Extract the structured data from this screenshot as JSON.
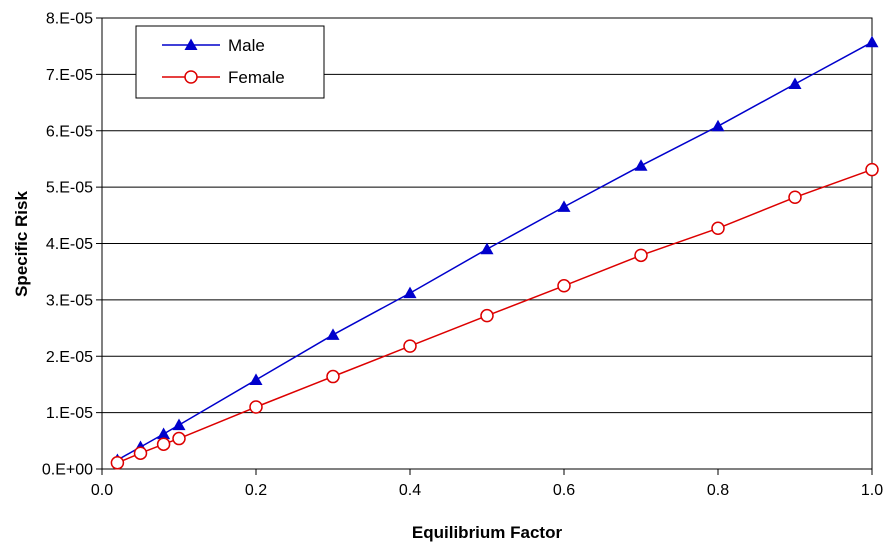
{
  "chart_data": {
    "type": "line",
    "title": "",
    "xlabel": "Equilibrium Factor",
    "ylabel": "Specific Risk",
    "xlim": [
      0,
      1.0
    ],
    "ylim": [
      0,
      8e-05
    ],
    "xticks": [
      0,
      0.2,
      0.4,
      0.6,
      0.8,
      1.0
    ],
    "xtick_labels": [
      "0.0",
      "0.2",
      "0.4",
      "0.6",
      "0.8",
      "1.0"
    ],
    "yticks": [
      0,
      1e-05,
      2e-05,
      3e-05,
      4e-05,
      5e-05,
      6e-05,
      7e-05,
      8e-05
    ],
    "ytick_labels": [
      "0.E+00",
      "1.E-05",
      "2.E-05",
      "3.E-05",
      "4.E-05",
      "5.E-05",
      "6.E-05",
      "7.E-05",
      "8.E-05"
    ],
    "grid": "horizontal",
    "legend_position": "top-left",
    "series": [
      {
        "name": "Male",
        "color": "#0000cc",
        "marker": "filled-triangle",
        "x": [
          0.02,
          0.05,
          0.08,
          0.1,
          0.2,
          0.3,
          0.4,
          0.5,
          0.6,
          0.7,
          0.8,
          0.9,
          1.0
        ],
        "y": [
          1.6e-06,
          3.9e-06,
          6.2e-06,
          7.8e-06,
          1.58e-05,
          2.38e-05,
          3.12e-05,
          3.9e-05,
          4.65e-05,
          5.38e-05,
          6.08e-05,
          6.83e-05,
          7.57e-05
        ]
      },
      {
        "name": "Female",
        "color": "#dd0000",
        "marker": "open-circle",
        "x": [
          0.02,
          0.05,
          0.08,
          0.1,
          0.2,
          0.3,
          0.4,
          0.5,
          0.6,
          0.7,
          0.8,
          0.9,
          1.0
        ],
        "y": [
          1.1e-06,
          2.8e-06,
          4.4e-06,
          5.4e-06,
          1.1e-05,
          1.64e-05,
          2.18e-05,
          2.72e-05,
          3.25e-05,
          3.79e-05,
          4.27e-05,
          4.82e-05,
          5.31e-05
        ]
      }
    ]
  }
}
